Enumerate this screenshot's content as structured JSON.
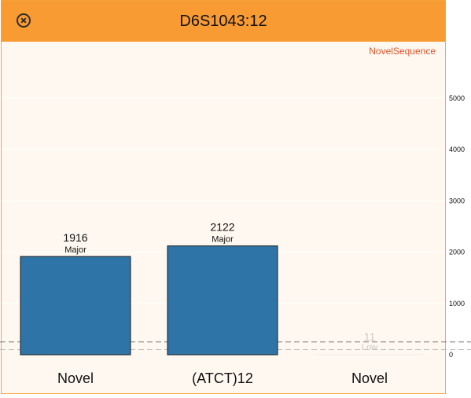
{
  "window": {
    "title": "D6S1043:12"
  },
  "legend": {
    "label": "NovelSequence"
  },
  "colors": {
    "bar": "#2e74a7",
    "header": "#f99b33",
    "legend": "#d9542b"
  },
  "chart_data": {
    "type": "bar",
    "categories": [
      "Novel",
      "(ATCT)12",
      "Novel"
    ],
    "values": [
      1916,
      2122,
      11
    ],
    "annotations": [
      "Major",
      "Major",
      "Low"
    ],
    "ylim": [
      0,
      5000
    ],
    "yticks": [
      0,
      1000,
      2000,
      3000,
      4000,
      5000
    ],
    "threshold_lines": [
      100,
      250
    ],
    "grid": true
  }
}
